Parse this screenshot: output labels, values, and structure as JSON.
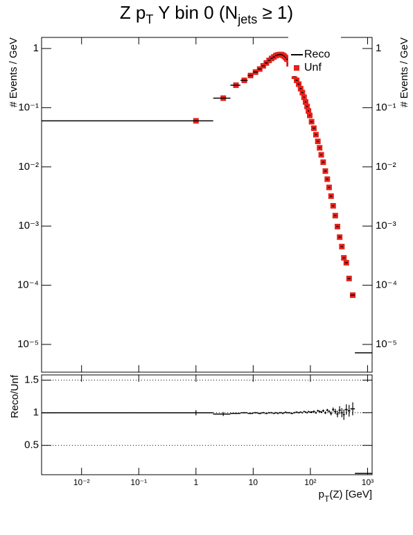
{
  "chart_data": [
    {
      "type": "histogram",
      "title": [
        "Z p",
        "T",
        " Y bin 0 (N",
        "jets",
        " ≥ 1)"
      ],
      "ylabel": "# Events / GeV",
      "xscale": "log",
      "yscale": "log",
      "xlim": [
        0.002,
        1200
      ],
      "ylim": [
        3.4e-06,
        1.54
      ],
      "xticks": [
        {
          "value": 0.01,
          "label": "10⁻²"
        },
        {
          "value": 0.1,
          "label": "10⁻¹"
        },
        1,
        10,
        {
          "value": 100,
          "label": "10²"
        },
        {
          "value": 1000,
          "label": "10³"
        }
      ],
      "yticks": [
        1,
        {
          "value": 0.1,
          "label": "10⁻¹"
        },
        {
          "value": 0.01,
          "label": "10⁻²"
        },
        {
          "value": 0.001,
          "label": "10⁻³"
        },
        {
          "value": 0.0001,
          "label": "10⁻⁴"
        },
        {
          "value": 1e-05,
          "label": "10⁻⁵"
        }
      ],
      "legend": "upper right",
      "bins": [
        0,
        2,
        4,
        6,
        8,
        10,
        12,
        14,
        16,
        18,
        20,
        22,
        24,
        26,
        28,
        30,
        32,
        34,
        36,
        38,
        40,
        45,
        50,
        55,
        60,
        65,
        70,
        75,
        80,
        85,
        90,
        95,
        100,
        110,
        120,
        130,
        140,
        150,
        160,
        175,
        190,
        205,
        220,
        240,
        260,
        285,
        310,
        340,
        370,
        400,
        450,
        500,
        600,
        2000
      ],
      "series": [
        {
          "name": "Reco",
          "color": "#000000",
          "style": "step",
          "values": [
            0.06,
            0.145,
            0.24,
            0.29,
            0.35,
            0.4,
            0.45,
            0.51,
            0.57,
            0.63,
            0.68,
            0.72,
            0.76,
            0.78,
            0.79,
            0.79,
            0.77,
            0.74,
            0.7,
            0.66,
            0.55,
            0.42,
            0.34,
            0.29,
            0.25,
            0.21,
            0.18,
            0.15,
            0.125,
            0.105,
            0.088,
            0.074,
            0.058,
            0.045,
            0.035,
            0.027,
            0.021,
            0.016,
            0.012,
            0.0085,
            0.0062,
            0.0045,
            0.0032,
            0.0022,
            0.0015,
            0.00098,
            0.00065,
            0.00045,
            0.00029,
            0.00024,
            0.00013,
            6.8e-05,
            7.2e-06
          ]
        },
        {
          "name": "Unf",
          "color": "#e6221b",
          "style": "marker",
          "values": [
            0.06,
            0.145,
            0.24,
            0.29,
            0.35,
            0.4,
            0.45,
            0.51,
            0.57,
            0.63,
            0.68,
            0.72,
            0.76,
            0.78,
            0.79,
            0.79,
            0.77,
            0.74,
            0.7,
            0.66,
            0.55,
            0.42,
            0.34,
            0.29,
            0.25,
            0.21,
            0.18,
            0.15,
            0.125,
            0.105,
            0.088,
            0.074,
            0.058,
            0.045,
            0.035,
            0.027,
            0.021,
            0.016,
            0.012,
            0.0085,
            0.0062,
            0.0045,
            0.0032,
            0.0022,
            0.0015,
            0.00098,
            0.00065,
            0.00045,
            0.00029,
            0.00024,
            0.00013,
            6.8e-05,
            null
          ]
        }
      ]
    },
    {
      "type": "histogram",
      "xlabel": [
        "p",
        "T",
        "(Z) [GeV]"
      ],
      "ylabel": "Reco/Unf",
      "xscale": "log",
      "xlim": [
        0.002,
        1200
      ],
      "ylim": [
        0.05,
        1.58
      ],
      "xticks": [
        {
          "value": 0.01,
          "label": "10⁻²"
        },
        {
          "value": 0.1,
          "label": "10⁻¹"
        },
        1,
        10,
        {
          "value": 100,
          "label": "10²"
        },
        {
          "value": 1000,
          "label": "10³"
        }
      ],
      "yticks": [
        0.5,
        1,
        1.5
      ],
      "grid": true,
      "bins": [
        0,
        2,
        4,
        6,
        8,
        10,
        12,
        14,
        16,
        18,
        20,
        22,
        24,
        26,
        28,
        30,
        32,
        34,
        36,
        38,
        40,
        45,
        50,
        55,
        60,
        65,
        70,
        75,
        80,
        85,
        90,
        95,
        100,
        110,
        120,
        130,
        140,
        150,
        160,
        175,
        190,
        205,
        220,
        240,
        260,
        285,
        310,
        340,
        370,
        400,
        450,
        500,
        600,
        2000
      ],
      "series": [
        {
          "color": "#000000",
          "values": [
            1.0,
            0.98,
            0.99,
            1.0,
            0.99,
            1.0,
            0.99,
            1.0,
            0.99,
            1.0,
            1.0,
            0.99,
            1.0,
            0.99,
            1.0,
            1.0,
            0.99,
            1.0,
            1.01,
            1.0,
            1.0,
            0.99,
            1.0,
            1.01,
            1.0,
            1.01,
            1.0,
            1.02,
            1.01,
            1.0,
            1.02,
            1.01,
            1.01,
            1.02,
            1.0,
            1.03,
            1.02,
            1.01,
            1.03,
            1.0,
            1.04,
            1.02,
            0.99,
            1.05,
            1.02,
            0.98,
            1.04,
            1.0,
            0.97,
            1.05,
            1.03,
            1.06,
            0.07
          ],
          "errors": [
            0.04,
            0.03,
            0.01,
            0.01,
            0.01,
            0.01,
            0.01,
            0.01,
            0.01,
            0.01,
            0.01,
            0.01,
            0.01,
            0.01,
            0.01,
            0.01,
            0.01,
            0.01,
            0.01,
            0.01,
            0.01,
            0.01,
            0.01,
            0.01,
            0.01,
            0.01,
            0.01,
            0.01,
            0.01,
            0.01,
            0.01,
            0.01,
            0.015,
            0.015,
            0.015,
            0.015,
            0.015,
            0.015,
            0.02,
            0.02,
            0.02,
            0.02,
            0.03,
            0.03,
            0.04,
            0.05,
            0.06,
            0.07,
            0.08,
            0.08,
            0.09,
            0.1,
            0.01
          ]
        }
      ]
    }
  ]
}
